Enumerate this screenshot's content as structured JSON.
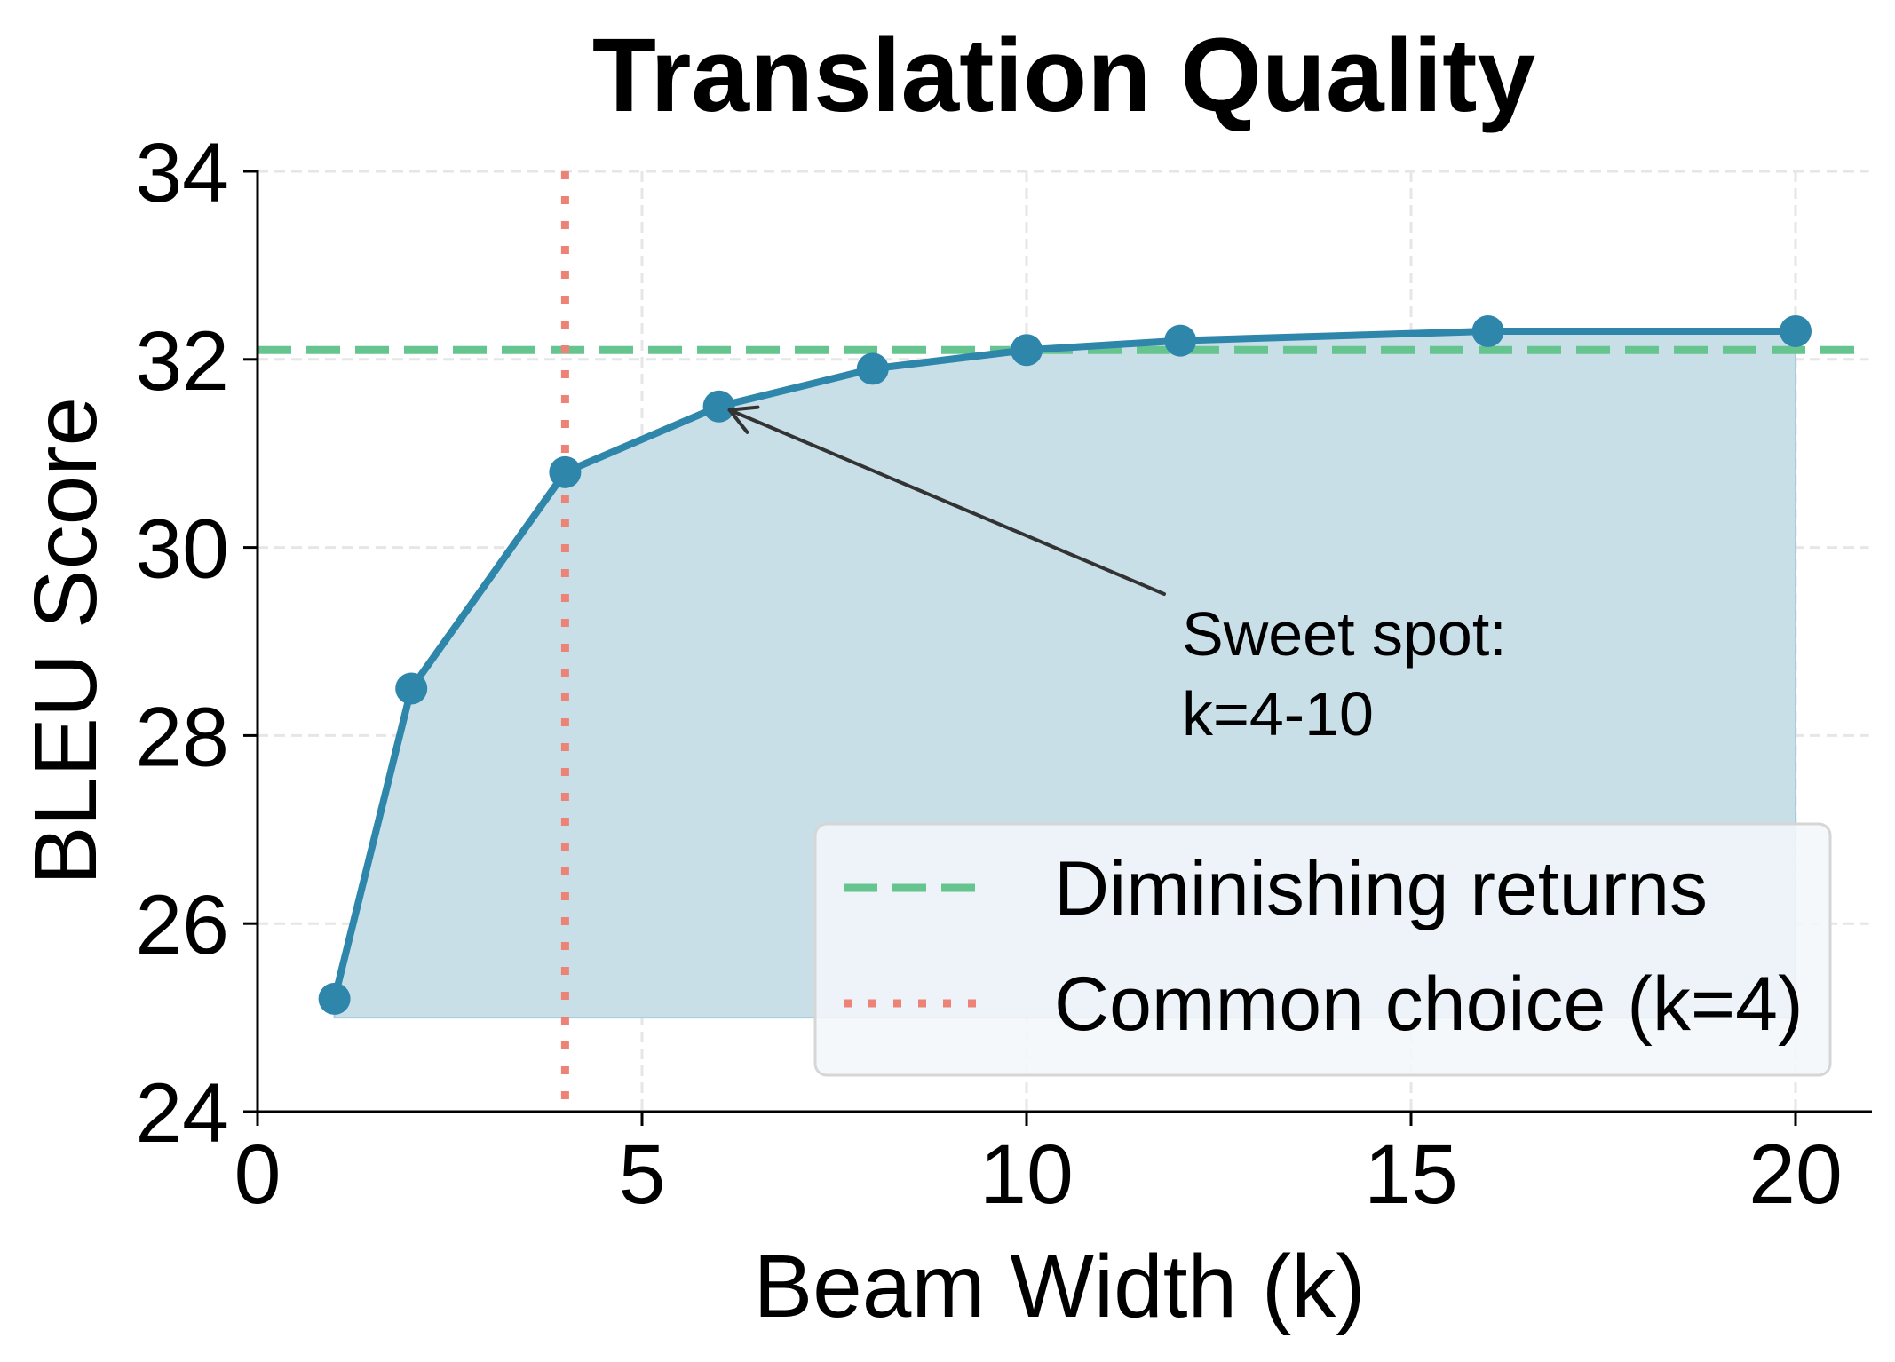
{
  "chart_data": {
    "type": "line",
    "title": "Translation Quality",
    "xlabel": "Beam Width (k)",
    "ylabel": "BLEU Score",
    "xlim": [
      0,
      21
    ],
    "ylim": [
      24,
      34
    ],
    "xticks": [
      0,
      5,
      10,
      15,
      20
    ],
    "yticks": [
      24,
      26,
      28,
      30,
      32,
      34
    ],
    "xtick_labels": [
      "0",
      "5",
      "10",
      "15",
      "20"
    ],
    "ytick_labels": [
      "24",
      "26",
      "28",
      "30",
      "32",
      "34"
    ],
    "grid": true,
    "series": [
      {
        "name": "BLEU",
        "x": [
          1,
          2,
          4,
          6,
          8,
          10,
          12,
          16,
          20
        ],
        "values": [
          25.2,
          28.5,
          30.8,
          31.5,
          31.9,
          32.1,
          32.2,
          32.3,
          32.3
        ],
        "color": "#2E86AB",
        "marker": "circle",
        "fill_to": 25.0,
        "fill_color": "#C8DFE8"
      }
    ],
    "reference_lines": [
      {
        "name": "Diminishing returns",
        "orientation": "horizontal",
        "value": 32.1,
        "style": "dashed",
        "color": "#66C58F"
      },
      {
        "name": "Common choice (k=4)",
        "orientation": "vertical",
        "value": 4,
        "style": "dotted",
        "color": "#ED8377"
      }
    ],
    "annotations": [
      {
        "text_lines": [
          "Sweet spot:",
          "k=4-10"
        ],
        "arrow_to": [
          6,
          31.5
        ],
        "text_at": [
          12,
          29.0
        ]
      }
    ],
    "legend": {
      "position": "lower right",
      "entries": [
        "Diminishing returns",
        "Common choice (k=4)"
      ]
    }
  },
  "colors": {
    "line": "#2E86AB",
    "fill": "#C8DFE8",
    "green_ref": "#66C58F",
    "red_ref": "#ED8377",
    "grid": "#E6E6E6",
    "legend_bg": "#F3F7FA",
    "legend_border": "#D6D6D6",
    "arrow": "#333333"
  }
}
